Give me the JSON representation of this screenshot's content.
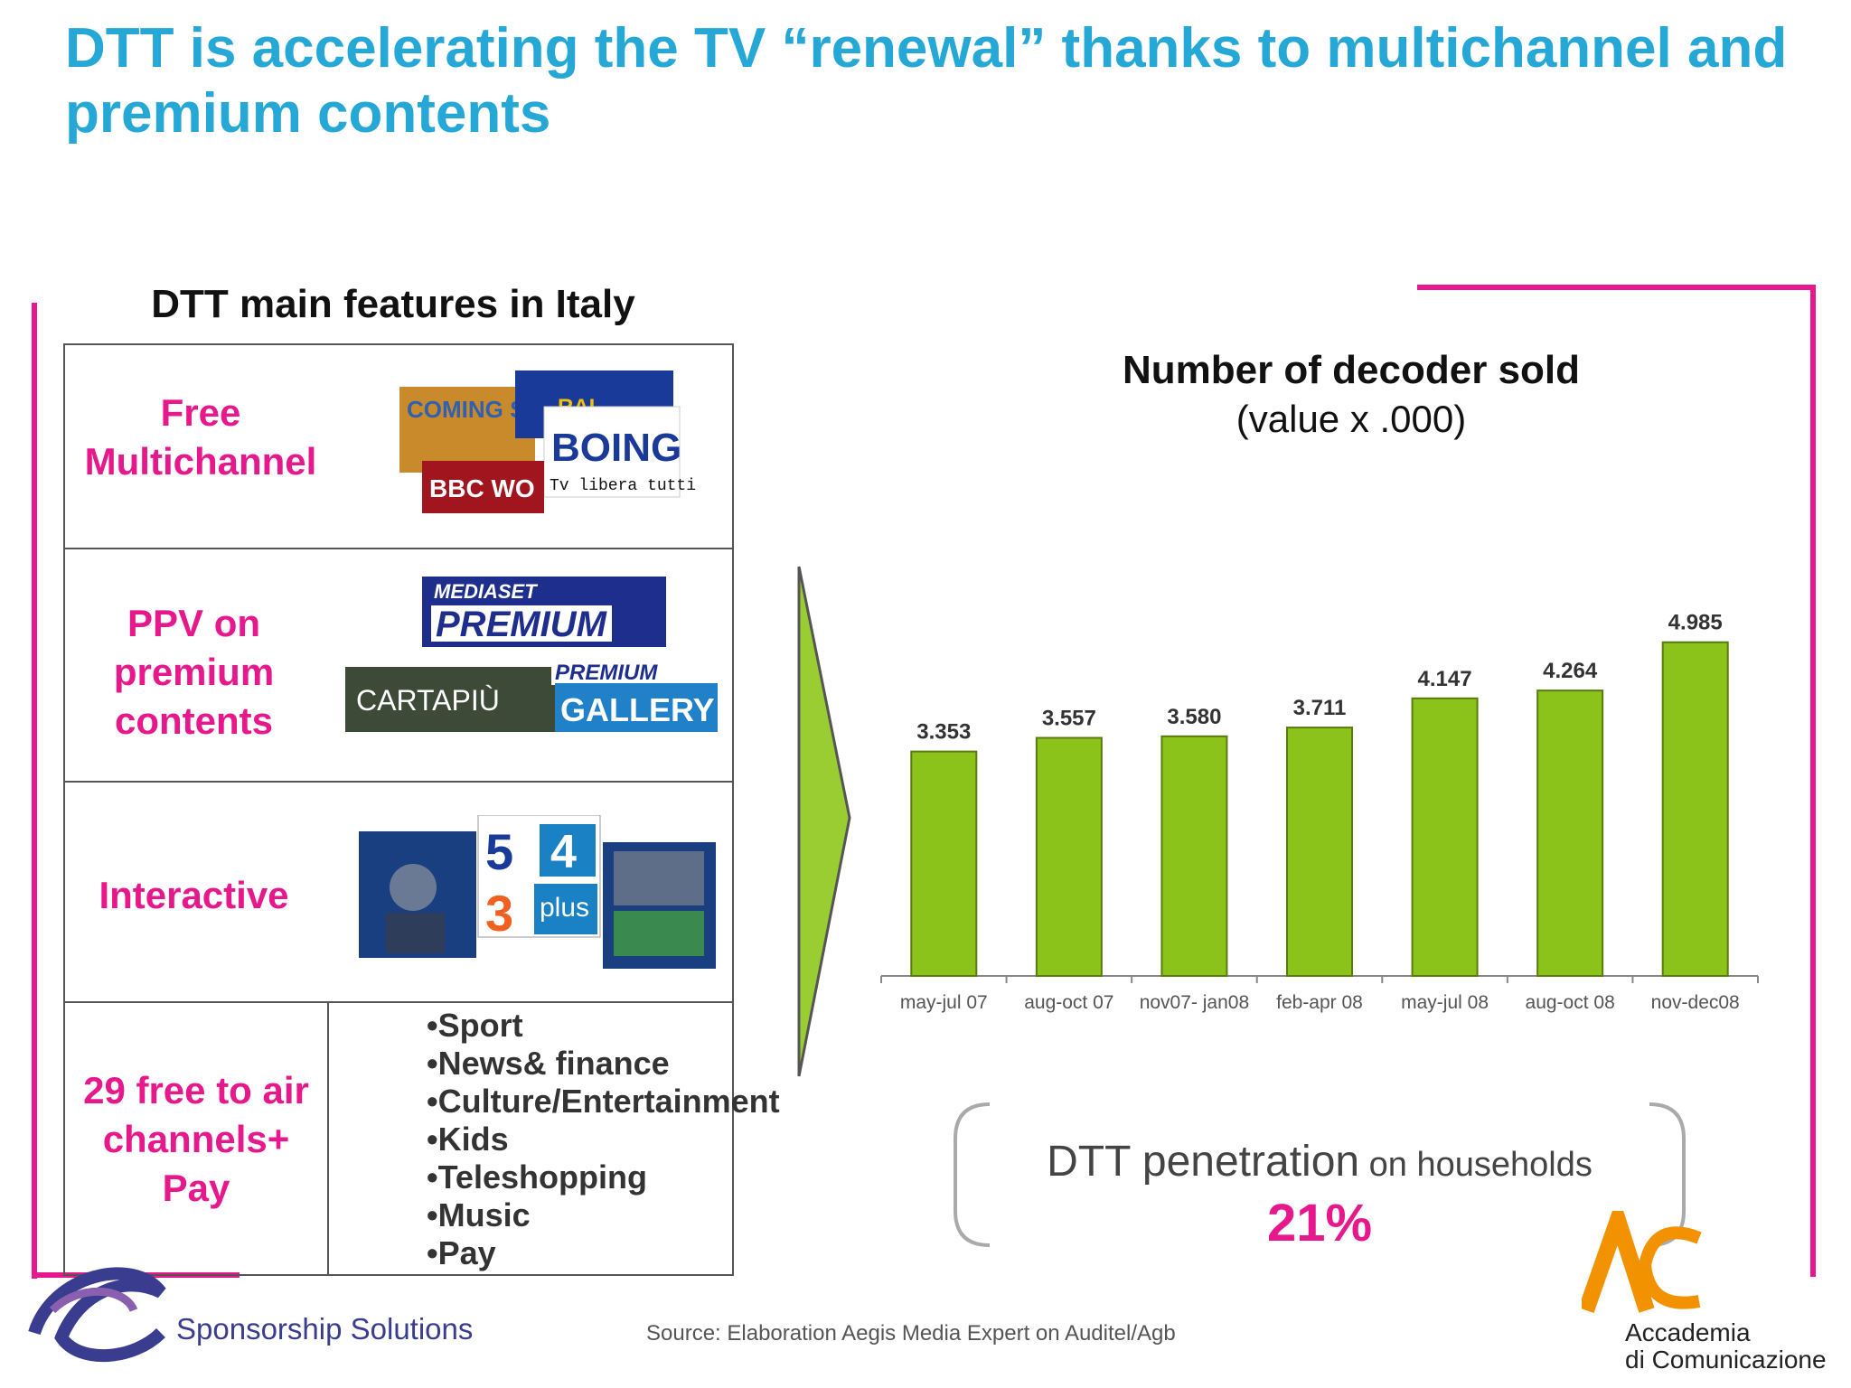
{
  "slide": {
    "title": "DTT is accelerating the TV “renewal” thanks to multichannel and premium contents"
  },
  "features": {
    "heading": "DTT main features in Italy",
    "rows": [
      {
        "label": "Free Multichannel",
        "logos": [
          "COMING SOON",
          "RAI",
          "BOING",
          "Tv libera tutti.",
          "BBC WO"
        ]
      },
      {
        "label": "PPV on premium contents",
        "logos": [
          "MEDIASET",
          "PREMIUM",
          "CARTAPIÙ",
          "PREMIUM",
          "GALLERY"
        ]
      },
      {
        "label": "Interactive",
        "logos": [
          "5",
          "4",
          "3",
          "plus"
        ]
      },
      {
        "label": "29 free to air channels+ Pay",
        "items": [
          "•Sport",
          "•News& finance",
          "•Culture/Entertainment",
          "•Kids",
          "•Teleshopping",
          "•Music",
          "•Pay"
        ]
      }
    ]
  },
  "chart_data": {
    "type": "bar",
    "title": "Number of decoder sold",
    "subtitle": "(value x .000)",
    "categories": [
      "may-jul 07",
      "aug-oct 07",
      "nov07- jan08",
      "feb-apr 08",
      "may-jul 08",
      "aug-oct 08",
      "nov-dec08"
    ],
    "values": [
      3.353,
      3.557,
      3.58,
      3.711,
      4.147,
      4.264,
      4.985
    ],
    "data_labels": [
      "3.353",
      "3.557",
      "3.580",
      "3.711",
      "4.147",
      "4.264",
      "4.985"
    ],
    "ylim": [
      0,
      5.4
    ],
    "grid": false,
    "bar_color": "#8cc31a"
  },
  "penetration": {
    "label_big": "DTT penetration",
    "label_small": " on households",
    "value": "21%"
  },
  "footer": {
    "source": "Source: Elaboration Aegis Media Expert on Auditel/Agb",
    "left_logo_text": "Sponsorship Solutions",
    "right_logo_line1": "Accademia",
    "right_logo_line2": "di Comunicazione"
  },
  "colors": {
    "title": "#25a8d6",
    "accent": "#e6188c",
    "bar": "#8cc31a",
    "arrow": "#9acd32"
  }
}
